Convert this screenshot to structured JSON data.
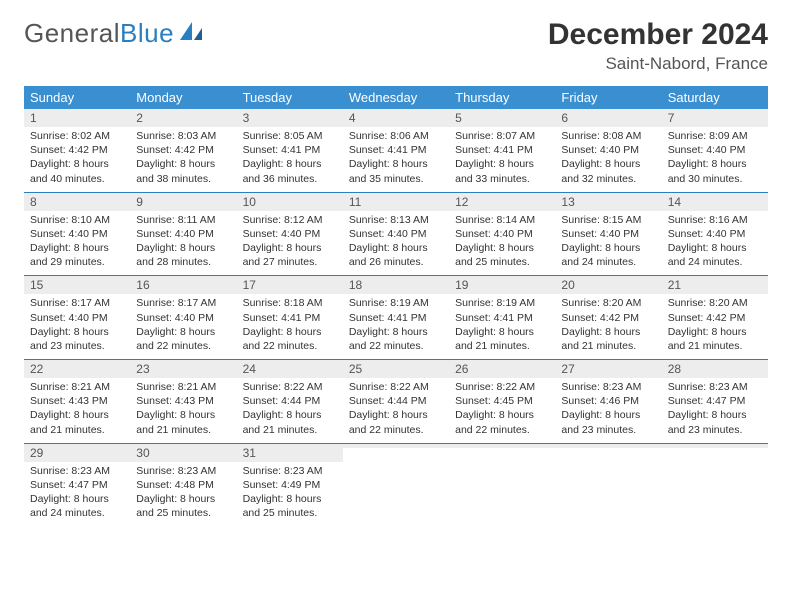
{
  "logo": {
    "text1": "General",
    "text2": "Blue"
  },
  "title": "December 2024",
  "location": "Saint-Nabord, France",
  "colors": {
    "header_bg": "#3a8fd0",
    "header_text": "#ffffff",
    "daynum_bg": "#ededed",
    "week_divider": "#2a7fbf",
    "logo_gray": "#555555",
    "logo_blue": "#2a7fbf"
  },
  "day_names": [
    "Sunday",
    "Monday",
    "Tuesday",
    "Wednesday",
    "Thursday",
    "Friday",
    "Saturday"
  ],
  "weeks": [
    [
      {
        "n": "1",
        "sr": "Sunrise: 8:02 AM",
        "ss": "Sunset: 4:42 PM",
        "dl": "Daylight: 8 hours and 40 minutes."
      },
      {
        "n": "2",
        "sr": "Sunrise: 8:03 AM",
        "ss": "Sunset: 4:42 PM",
        "dl": "Daylight: 8 hours and 38 minutes."
      },
      {
        "n": "3",
        "sr": "Sunrise: 8:05 AM",
        "ss": "Sunset: 4:41 PM",
        "dl": "Daylight: 8 hours and 36 minutes."
      },
      {
        "n": "4",
        "sr": "Sunrise: 8:06 AM",
        "ss": "Sunset: 4:41 PM",
        "dl": "Daylight: 8 hours and 35 minutes."
      },
      {
        "n": "5",
        "sr": "Sunrise: 8:07 AM",
        "ss": "Sunset: 4:41 PM",
        "dl": "Daylight: 8 hours and 33 minutes."
      },
      {
        "n": "6",
        "sr": "Sunrise: 8:08 AM",
        "ss": "Sunset: 4:40 PM",
        "dl": "Daylight: 8 hours and 32 minutes."
      },
      {
        "n": "7",
        "sr": "Sunrise: 8:09 AM",
        "ss": "Sunset: 4:40 PM",
        "dl": "Daylight: 8 hours and 30 minutes."
      }
    ],
    [
      {
        "n": "8",
        "sr": "Sunrise: 8:10 AM",
        "ss": "Sunset: 4:40 PM",
        "dl": "Daylight: 8 hours and 29 minutes."
      },
      {
        "n": "9",
        "sr": "Sunrise: 8:11 AM",
        "ss": "Sunset: 4:40 PM",
        "dl": "Daylight: 8 hours and 28 minutes."
      },
      {
        "n": "10",
        "sr": "Sunrise: 8:12 AM",
        "ss": "Sunset: 4:40 PM",
        "dl": "Daylight: 8 hours and 27 minutes."
      },
      {
        "n": "11",
        "sr": "Sunrise: 8:13 AM",
        "ss": "Sunset: 4:40 PM",
        "dl": "Daylight: 8 hours and 26 minutes."
      },
      {
        "n": "12",
        "sr": "Sunrise: 8:14 AM",
        "ss": "Sunset: 4:40 PM",
        "dl": "Daylight: 8 hours and 25 minutes."
      },
      {
        "n": "13",
        "sr": "Sunrise: 8:15 AM",
        "ss": "Sunset: 4:40 PM",
        "dl": "Daylight: 8 hours and 24 minutes."
      },
      {
        "n": "14",
        "sr": "Sunrise: 8:16 AM",
        "ss": "Sunset: 4:40 PM",
        "dl": "Daylight: 8 hours and 24 minutes."
      }
    ],
    [
      {
        "n": "15",
        "sr": "Sunrise: 8:17 AM",
        "ss": "Sunset: 4:40 PM",
        "dl": "Daylight: 8 hours and 23 minutes."
      },
      {
        "n": "16",
        "sr": "Sunrise: 8:17 AM",
        "ss": "Sunset: 4:40 PM",
        "dl": "Daylight: 8 hours and 22 minutes."
      },
      {
        "n": "17",
        "sr": "Sunrise: 8:18 AM",
        "ss": "Sunset: 4:41 PM",
        "dl": "Daylight: 8 hours and 22 minutes."
      },
      {
        "n": "18",
        "sr": "Sunrise: 8:19 AM",
        "ss": "Sunset: 4:41 PM",
        "dl": "Daylight: 8 hours and 22 minutes."
      },
      {
        "n": "19",
        "sr": "Sunrise: 8:19 AM",
        "ss": "Sunset: 4:41 PM",
        "dl": "Daylight: 8 hours and 21 minutes."
      },
      {
        "n": "20",
        "sr": "Sunrise: 8:20 AM",
        "ss": "Sunset: 4:42 PM",
        "dl": "Daylight: 8 hours and 21 minutes."
      },
      {
        "n": "21",
        "sr": "Sunrise: 8:20 AM",
        "ss": "Sunset: 4:42 PM",
        "dl": "Daylight: 8 hours and 21 minutes."
      }
    ],
    [
      {
        "n": "22",
        "sr": "Sunrise: 8:21 AM",
        "ss": "Sunset: 4:43 PM",
        "dl": "Daylight: 8 hours and 21 minutes."
      },
      {
        "n": "23",
        "sr": "Sunrise: 8:21 AM",
        "ss": "Sunset: 4:43 PM",
        "dl": "Daylight: 8 hours and 21 minutes."
      },
      {
        "n": "24",
        "sr": "Sunrise: 8:22 AM",
        "ss": "Sunset: 4:44 PM",
        "dl": "Daylight: 8 hours and 21 minutes."
      },
      {
        "n": "25",
        "sr": "Sunrise: 8:22 AM",
        "ss": "Sunset: 4:44 PM",
        "dl": "Daylight: 8 hours and 22 minutes."
      },
      {
        "n": "26",
        "sr": "Sunrise: 8:22 AM",
        "ss": "Sunset: 4:45 PM",
        "dl": "Daylight: 8 hours and 22 minutes."
      },
      {
        "n": "27",
        "sr": "Sunrise: 8:23 AM",
        "ss": "Sunset: 4:46 PM",
        "dl": "Daylight: 8 hours and 23 minutes."
      },
      {
        "n": "28",
        "sr": "Sunrise: 8:23 AM",
        "ss": "Sunset: 4:47 PM",
        "dl": "Daylight: 8 hours and 23 minutes."
      }
    ],
    [
      {
        "n": "29",
        "sr": "Sunrise: 8:23 AM",
        "ss": "Sunset: 4:47 PM",
        "dl": "Daylight: 8 hours and 24 minutes."
      },
      {
        "n": "30",
        "sr": "Sunrise: 8:23 AM",
        "ss": "Sunset: 4:48 PM",
        "dl": "Daylight: 8 hours and 25 minutes."
      },
      {
        "n": "31",
        "sr": "Sunrise: 8:23 AM",
        "ss": "Sunset: 4:49 PM",
        "dl": "Daylight: 8 hours and 25 minutes."
      },
      {
        "n": "",
        "sr": "",
        "ss": "",
        "dl": "",
        "empty": true
      },
      {
        "n": "",
        "sr": "",
        "ss": "",
        "dl": "",
        "empty": true
      },
      {
        "n": "",
        "sr": "",
        "ss": "",
        "dl": "",
        "empty": true
      },
      {
        "n": "",
        "sr": "",
        "ss": "",
        "dl": "",
        "empty": true
      }
    ]
  ]
}
